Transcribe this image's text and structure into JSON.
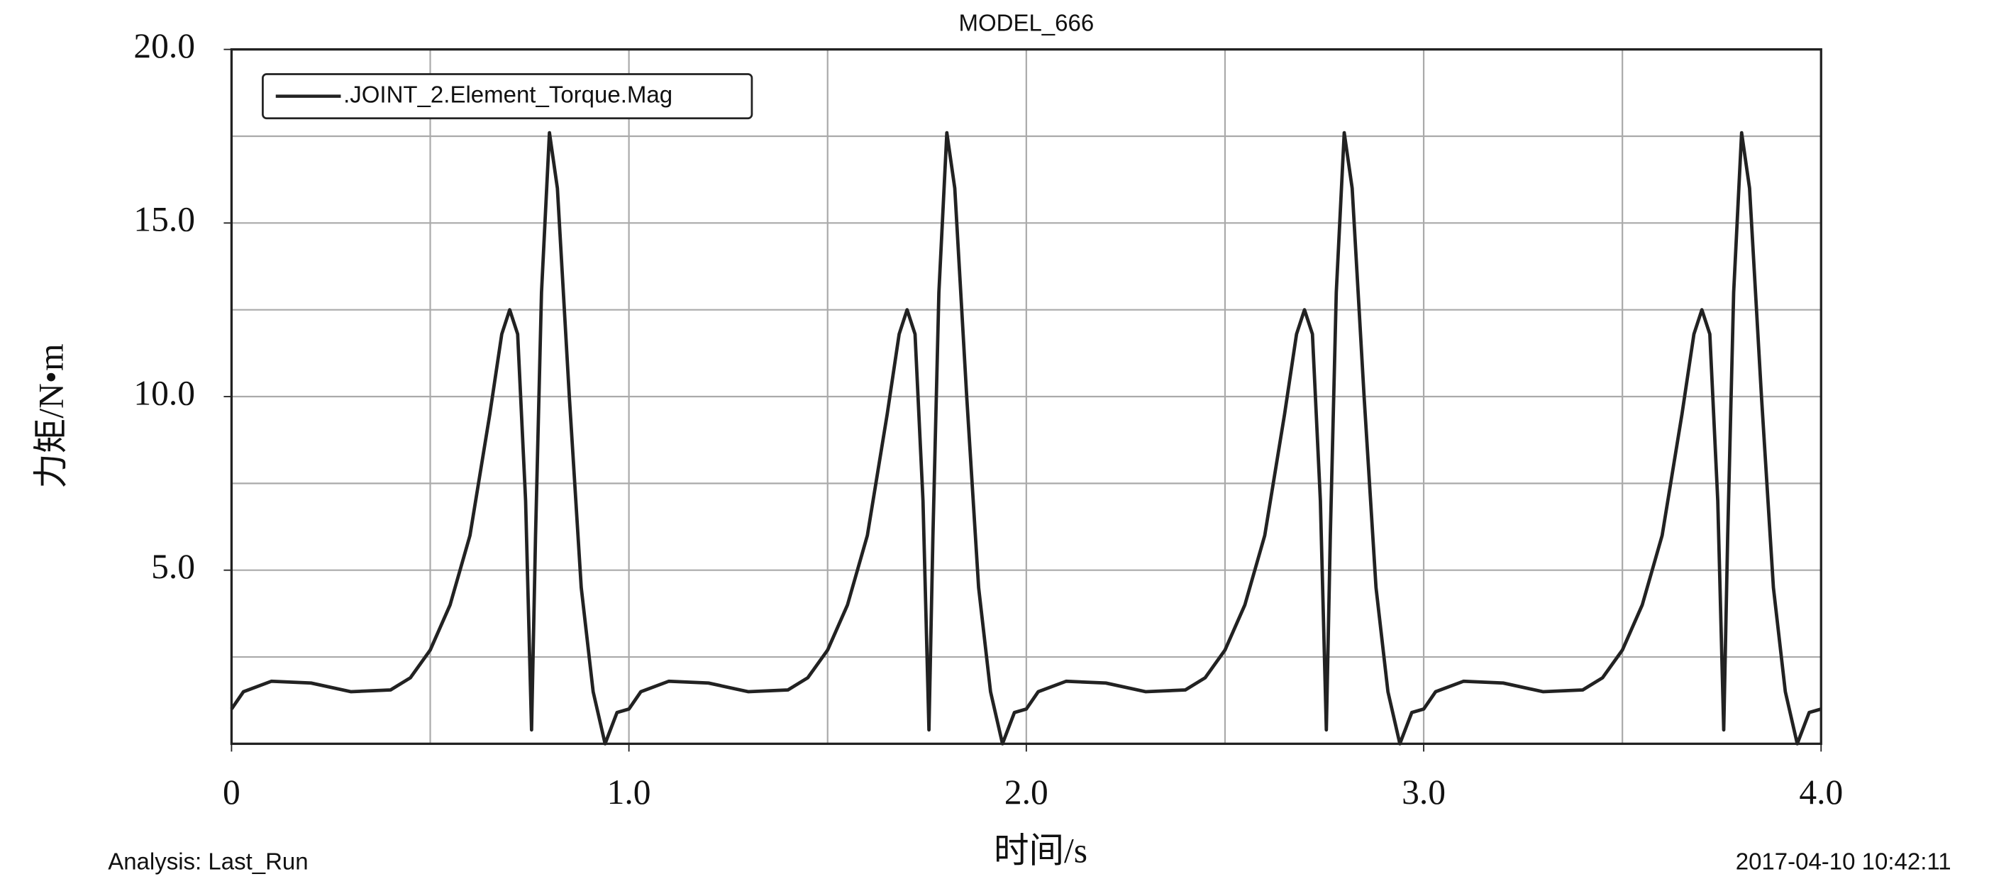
{
  "chart_data": {
    "type": "line",
    "title": "MODEL_666",
    "x_label": "时间/s",
    "y_label": "力矩/N•m",
    "analysis": "Analysis:  Last_Run",
    "timestamp": "2017-04-10 10:42:11",
    "xlim": [
      0,
      4
    ],
    "ylim": [
      0,
      20
    ],
    "xticks": [
      {
        "value": 0,
        "label": "0"
      },
      {
        "value": 1,
        "label": "1.0"
      },
      {
        "value": 2,
        "label": "2.0"
      },
      {
        "value": 3,
        "label": "3.0"
      },
      {
        "value": 4,
        "label": "4.0"
      }
    ],
    "yticks": [
      {
        "value": 5,
        "label": "5.0"
      },
      {
        "value": 10,
        "label": "10.0"
      },
      {
        "value": 15,
        "label": "15.0"
      },
      {
        "value": 20,
        "label": "20.0"
      }
    ],
    "xgrid": [
      0.5,
      1,
      1.5,
      2,
      2.5,
      3,
      3.5
    ],
    "ygrid": [
      2.5,
      5,
      7.5,
      10,
      12.5,
      15,
      17.5
    ],
    "grid": true,
    "legend": "upper left",
    "x": [
      0,
      0.03,
      0.1,
      0.2,
      0.3,
      0.4,
      0.45,
      0.5,
      0.55,
      0.6,
      0.65,
      0.68,
      0.7,
      0.72,
      0.74,
      0.755,
      0.765,
      0.78,
      0.8,
      0.82,
      0.85,
      0.88,
      0.91,
      0.94,
      0.97,
      1,
      1.03,
      1.1,
      1.2,
      1.3,
      1.4,
      1.45,
      1.5,
      1.55,
      1.6,
      1.65,
      1.68,
      1.7,
      1.72,
      1.74,
      1.755,
      1.765,
      1.78,
      1.8,
      1.82,
      1.85,
      1.88,
      1.91,
      1.94,
      1.97,
      2,
      2.03,
      2.1,
      2.2,
      2.3,
      2.4,
      2.45,
      2.5,
      2.55,
      2.6,
      2.65,
      2.68,
      2.7,
      2.72,
      2.74,
      2.755,
      2.765,
      2.78,
      2.8,
      2.82,
      2.85,
      2.88,
      2.91,
      2.94,
      2.97,
      3,
      3.03,
      3.1,
      3.2,
      3.3,
      3.4,
      3.45,
      3.5,
      3.55,
      3.6,
      3.65,
      3.68,
      3.7,
      3.72,
      3.74,
      3.755,
      3.765,
      3.78,
      3.8,
      3.82,
      3.85,
      3.88,
      3.91,
      3.94,
      3.97,
      4
    ],
    "series": [
      {
        "name": ".JOINT_2.Element_Torque.Mag",
        "color": "#222222",
        "values": [
          1.0,
          1.5,
          1.8,
          1.75,
          1.5,
          1.55,
          1.9,
          2.7,
          4.0,
          6.0,
          9.5,
          11.8,
          12.5,
          11.8,
          7.0,
          0.4,
          6.0,
          13.0,
          17.6,
          16.0,
          10.0,
          4.5,
          1.5,
          0.0,
          0.9,
          1.0,
          1.5,
          1.8,
          1.75,
          1.5,
          1.55,
          1.9,
          2.7,
          4.0,
          6.0,
          9.5,
          11.8,
          12.5,
          11.8,
          7.0,
          0.4,
          6.0,
          13.0,
          17.6,
          16.0,
          10.0,
          4.5,
          1.5,
          0.0,
          0.9,
          1.0,
          1.5,
          1.8,
          1.75,
          1.5,
          1.55,
          1.9,
          2.7,
          4.0,
          6.0,
          9.5,
          11.8,
          12.5,
          11.8,
          7.0,
          0.4,
          6.0,
          13.0,
          17.6,
          16.0,
          10.0,
          4.5,
          1.5,
          0.0,
          0.9,
          1.0,
          1.5,
          1.8,
          1.75,
          1.5,
          1.55,
          1.9,
          2.7,
          4.0,
          6.0,
          9.5,
          11.8,
          12.5,
          11.8,
          7.0,
          0.4,
          6.0,
          13.0,
          17.6,
          16.0,
          10.0,
          4.5,
          1.5,
          0.0,
          0.9,
          1.0
        ]
      }
    ]
  }
}
